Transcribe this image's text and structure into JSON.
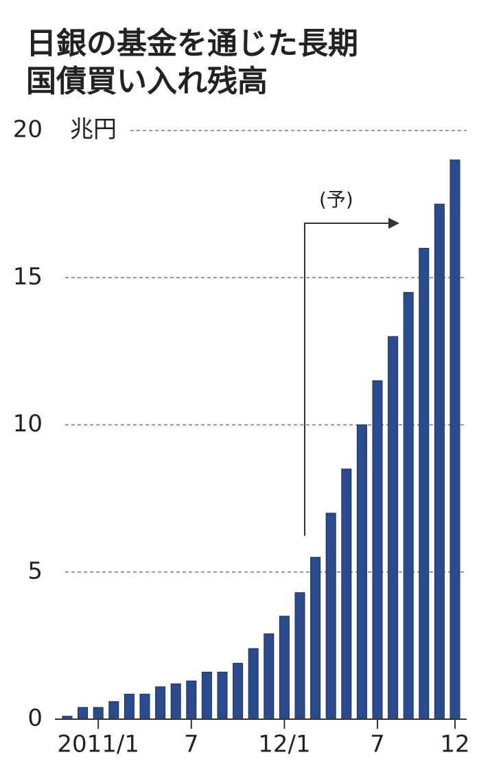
{
  "chart_data": {
    "type": "bar",
    "title": [
      "日銀の基金を通じた長期",
      "国債買い入れ残高"
    ],
    "unit": "兆円",
    "annotation": "(予)",
    "categories": [
      null,
      null,
      "2011/1",
      null,
      null,
      null,
      null,
      null,
      "7",
      null,
      null,
      null,
      null,
      null,
      "12/1",
      null,
      null,
      null,
      null,
      null,
      "7",
      null,
      null,
      null,
      null,
      "12"
    ],
    "values": [
      0.1,
      0.4,
      0.4,
      0.6,
      0.85,
      0.85,
      1.1,
      1.2,
      1.3,
      1.6,
      1.6,
      1.9,
      2.4,
      2.9,
      3.5,
      4.3,
      5.5,
      7.0,
      8.5,
      10.0,
      11.5,
      13.0,
      14.5,
      16.0,
      17.5,
      19.0
    ],
    "color": "#2b4b8f",
    "ylim": [
      0,
      20
    ],
    "yticks": [
      0,
      5,
      10,
      15,
      20
    ],
    "grid": true
  }
}
